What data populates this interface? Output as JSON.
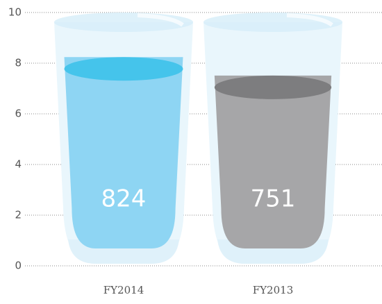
{
  "chart_data": {
    "type": "glass",
    "categories": [
      "FY2014",
      "FY2013"
    ],
    "values": [
      8.24,
      7.51
    ],
    "value_labels": [
      "824",
      "751"
    ],
    "colors": [
      "#8ed5f3",
      "#a6a6a8"
    ],
    "surface_colors": [
      "#45c4eb",
      "#7d7d7f"
    ],
    "ylim": [
      0,
      10
    ],
    "yticks": [
      0,
      2,
      4,
      6,
      8,
      10
    ],
    "grid": true
  }
}
